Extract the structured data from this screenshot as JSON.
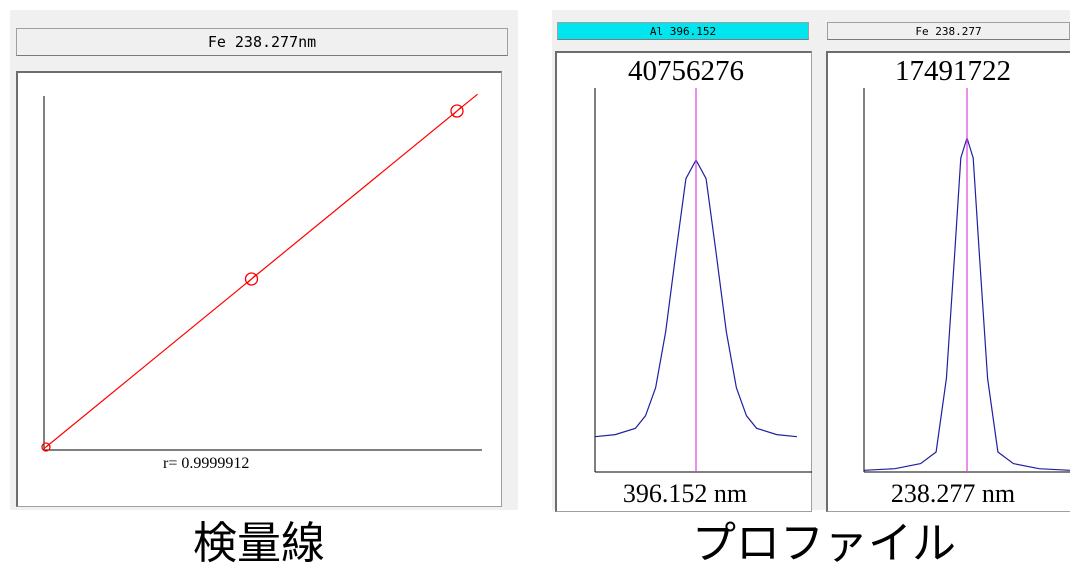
{
  "calibration": {
    "title": "Fe 238.277nm",
    "r_label": "r= 0.9999912",
    "line_color": "#ff0000",
    "chart_data": {
      "type": "scatter",
      "title": "",
      "xlabel": "",
      "ylabel": "",
      "x": [
        0,
        1,
        2
      ],
      "y": [
        0,
        1,
        2
      ],
      "fit": "linear",
      "r": 0.9999912,
      "grid": false
    }
  },
  "profiles": [
    {
      "title": "Al 396.152",
      "title_bg": "#00e5ee",
      "intensity": "40756276",
      "wavelength_label": "396.152 nm",
      "marker_color": "#e040e0",
      "curve_color": "#2020a0",
      "chart_data": {
        "type": "line",
        "center_nm": 396.152,
        "peak_intensity": 40756276,
        "baseline_fraction": 0.113,
        "x": [
          -1.0,
          -0.8,
          -0.6,
          -0.5,
          -0.4,
          -0.3,
          -0.2,
          -0.1,
          0.0,
          0.1,
          0.2,
          0.3,
          0.4,
          0.5,
          0.6,
          0.8,
          1.0
        ],
        "y": [
          0.113,
          0.12,
          0.14,
          0.18,
          0.27,
          0.45,
          0.7,
          0.94,
          1.0,
          0.94,
          0.7,
          0.45,
          0.27,
          0.18,
          0.14,
          0.12,
          0.113
        ]
      }
    },
    {
      "title": "Fe 238.277",
      "title_bg": "#f0f0f0",
      "intensity": "17491722",
      "wavelength_label": "238.277 nm",
      "marker_color": "#e040e0",
      "curve_color": "#2020a0",
      "chart_data": {
        "type": "line",
        "center_nm": 238.277,
        "peak_intensity": 17491722,
        "baseline_fraction": 0.01,
        "x": [
          -1.0,
          -0.7,
          -0.45,
          -0.3,
          -0.2,
          -0.12,
          -0.06,
          0.0,
          0.06,
          0.12,
          0.2,
          0.3,
          0.45,
          0.7,
          1.0
        ],
        "y": [
          0.005,
          0.01,
          0.025,
          0.06,
          0.28,
          0.65,
          0.94,
          1.0,
          0.94,
          0.65,
          0.28,
          0.06,
          0.025,
          0.01,
          0.005
        ]
      }
    }
  ],
  "captions": {
    "left": "検量線",
    "right": "プロファイル"
  }
}
